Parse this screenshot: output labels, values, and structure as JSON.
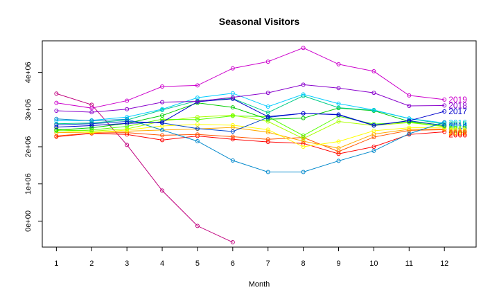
{
  "chart_data": {
    "type": "line",
    "title": "Seasonal Visitors",
    "xlabel": "Month",
    "ylabel": "",
    "x": [
      1,
      2,
      3,
      4,
      5,
      6,
      7,
      8,
      9,
      10,
      11,
      12
    ],
    "xlim": [
      0.6,
      12.9
    ],
    "ylim": [
      -700000,
      4850000
    ],
    "y_ticks": [
      0,
      1000000,
      2000000,
      3000000,
      4000000
    ],
    "y_tick_labels": [
      "0e+00",
      "1e+06",
      "2e+06",
      "3e+06",
      "4e+06"
    ],
    "x_tick_labels": [
      "1",
      "2",
      "3",
      "4",
      "5",
      "6",
      "7",
      "8",
      "9",
      "10",
      "11",
      "12"
    ],
    "grid": false,
    "series": [
      {
        "color": "#c0007e",
        "values": [
          3430000,
          3130000,
          2050000,
          820000,
          -130000,
          -570000,
          null,
          null,
          null,
          null,
          null,
          null
        ]
      },
      {
        "color": "#ff0000",
        "values": [
          2270000,
          2360000,
          2330000,
          2180000,
          2290000,
          2200000,
          2130000,
          2090000,
          1810000,
          2000000,
          2330000,
          2400000
        ]
      },
      {
        "color": "#ff5500",
        "values": [
          2290000,
          2370000,
          2380000,
          2310000,
          2330000,
          2270000,
          2200000,
          2250000,
          1870000,
          2260000,
          2440000,
          2460000
        ]
      },
      {
        "color": "#ffaa00",
        "values": [
          2380000,
          2390000,
          2420000,
          2450000,
          2480000,
          2520000,
          2390000,
          2150000,
          1960000,
          2340000,
          2470000,
          2480000
        ]
      },
      {
        "color": "#ffff00",
        "values": [
          2440000,
          2380000,
          2450000,
          2560000,
          2600000,
          2580000,
          2460000,
          2000000,
          2140000,
          2430000,
          2510000,
          2520000
        ]
      },
      {
        "color": "#aaff00",
        "values": [
          2470000,
          2420000,
          2480000,
          2690000,
          2800000,
          2850000,
          2680000,
          2220000,
          2680000,
          2570000,
          2650000,
          2540000
        ]
      },
      {
        "color": "#55ff00",
        "values": [
          2430000,
          2450000,
          2550000,
          2740000,
          2730000,
          2830000,
          2810000,
          2300000,
          2820000,
          2610000,
          2660000,
          2550000
        ]
      },
      {
        "color": "#00cc00",
        "values": [
          2450000,
          2510000,
          2630000,
          2840000,
          3180000,
          3060000,
          2740000,
          2770000,
          3040000,
          2970000,
          2680000,
          2580000
        ]
      },
      {
        "color": "#00cc88",
        "values": [
          2620000,
          2640000,
          2720000,
          2990000,
          3240000,
          3300000,
          2920000,
          3370000,
          3050000,
          2980000,
          2760000,
          2610000
        ]
      },
      {
        "color": "#00ccff",
        "values": [
          2700000,
          2710000,
          2800000,
          3010000,
          3320000,
          3440000,
          3080000,
          3410000,
          3160000,
          2990000,
          2760000,
          2640000
        ]
      },
      {
        "color": "#0088cc",
        "values": [
          2750000,
          2700000,
          2740000,
          2450000,
          2150000,
          1630000,
          1320000,
          1320000,
          1620000,
          1890000,
          2350000,
          2660000
        ]
      },
      {
        "color": "#0044cc",
        "values": [
          2590000,
          2620000,
          2680000,
          2640000,
          2490000,
          2410000,
          2790000,
          2900000,
          2870000,
          2580000,
          2700000,
          2570000
        ]
      },
      {
        "color": "#0000cc",
        "values": [
          2530000,
          2570000,
          2630000,
          2660000,
          3210000,
          3290000,
          2810000,
          2900000,
          2860000,
          2570000,
          2700000,
          2950000
        ]
      },
      {
        "color": "#8800cc",
        "values": [
          2970000,
          2930000,
          3010000,
          3200000,
          3220000,
          3330000,
          3450000,
          3670000,
          3580000,
          3450000,
          3100000,
          3110000
        ]
      },
      {
        "color": "#cc00cc",
        "values": [
          3180000,
          3040000,
          3240000,
          3620000,
          3650000,
          4110000,
          4290000,
          4660000,
          4220000,
          4030000,
          3380000,
          3270000
        ]
      }
    ],
    "end_labels": [
      {
        "text": "2019",
        "color": "#cc00cc",
        "y": 3270000
      },
      {
        "text": "2018",
        "color": "#8800cc",
        "y": 3110000
      },
      {
        "text": "2017",
        "color": "#0000cc",
        "y": 2950000
      },
      {
        "text": "2016",
        "color": "#00ccff",
        "y": 2640000
      },
      {
        "text": "2015",
        "color": "#00cc88",
        "y": 2600000
      },
      {
        "text": "2014",
        "color": "#0044cc",
        "y": 2560000
      },
      {
        "text": "2013",
        "color": "#0088cc",
        "y": 2520000
      },
      {
        "text": "2012",
        "color": "#55ff00",
        "y": 2480000
      },
      {
        "text": "2011",
        "color": "#aaff00",
        "y": 2450000
      },
      {
        "text": "2010",
        "color": "#ffff00",
        "y": 2420000
      },
      {
        "text": "2009",
        "color": "#ffaa00",
        "y": 2390000
      },
      {
        "text": "2008",
        "color": "#ff5500",
        "y": 2360000
      },
      {
        "text": "2006",
        "color": "#ff0000",
        "y": 2330000
      }
    ]
  }
}
